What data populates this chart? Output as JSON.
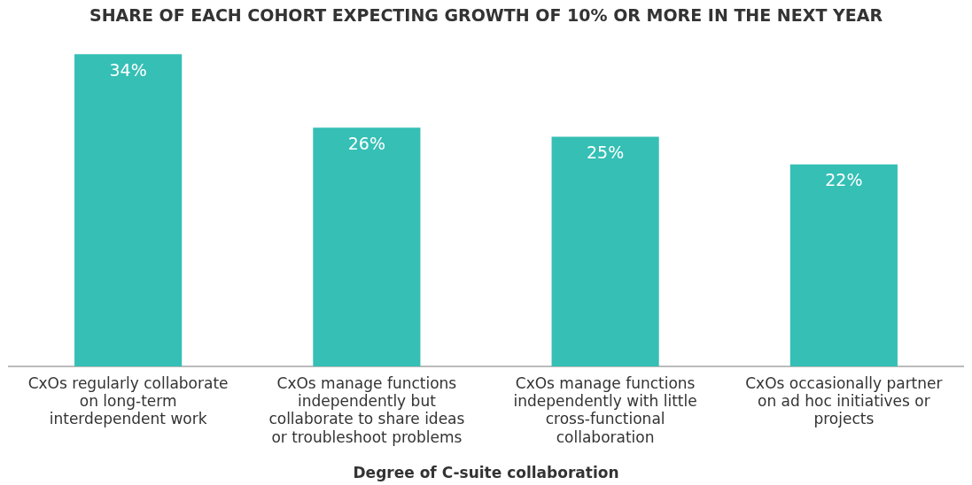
{
  "chart_data": {
    "type": "bar",
    "title": "SHARE OF EACH COHORT EXPECTING GROWTH OF 10% OR MORE IN THE NEXT YEAR",
    "xlabel": "Degree of C-suite collaboration",
    "categories": [
      "CxOs regularly collaborate on long-term interdependent work",
      "CxOs manage functions independently but collaborate to share ideas or troubleshoot problems",
      "CxOs manage functions independently with little cross-functional collaboration",
      "CxOs occasionally partner on ad hoc initiatives or projects"
    ],
    "values": [
      34,
      26,
      25,
      22
    ],
    "color": "#35bfb5",
    "value_labels": [
      "34%",
      "26%",
      "25%",
      "22%"
    ],
    "grid": false,
    "legend": false
  }
}
